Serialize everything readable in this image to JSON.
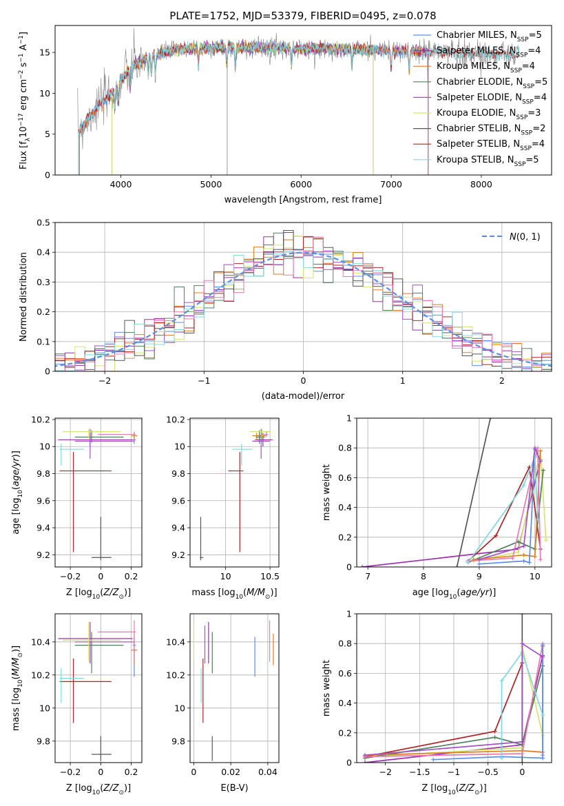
{
  "figure_title": "PLATE=1752, MJD=53379, FIBERID=0495, z=0.078",
  "colors": {
    "Chabrier MILES": "#5b8ee6",
    "Salpeter MILES": "#9b2fae",
    "Kroupa MILES": "#e07a1f",
    "Chabrier ELODIE": "#4f7f5a",
    "Salpeter ELODIE": "#a24fc3",
    "Kroupa ELODIE": "#d6e56a",
    "Chabrier STELIB": "#555555",
    "Salpeter STELIB": "#b22222",
    "Kroupa STELIB": "#7fd8e0",
    "data": "#7f7f7f",
    "gaussian": "#5b8ee6",
    "pink": "#e879b0"
  },
  "legend_entries": [
    {
      "label": "Chabrier MILES, N",
      "sub": "SSP",
      "tail": "=5",
      "color_key": "Chabrier MILES"
    },
    {
      "label": "Salpeter MILES, N",
      "sub": "SSP",
      "tail": "=4",
      "color_key": "Salpeter MILES"
    },
    {
      "label": "Kroupa MILES, N",
      "sub": "SSP",
      "tail": "=4",
      "color_key": "Kroupa MILES"
    },
    {
      "label": "Chabrier ELODIE, N",
      "sub": "SSP",
      "tail": "=5",
      "color_key": "Chabrier ELODIE"
    },
    {
      "label": "Salpeter ELODIE, N",
      "sub": "SSP",
      "tail": "=4",
      "color_key": "Salpeter ELODIE"
    },
    {
      "label": "Kroupa ELODIE, N",
      "sub": "SSP",
      "tail": "=3",
      "color_key": "Kroupa ELODIE"
    },
    {
      "label": "Chabrier STELIB, N",
      "sub": "SSP",
      "tail": "=2",
      "color_key": "Chabrier STELIB"
    },
    {
      "label": "Salpeter STELIB, N",
      "sub": "SSP",
      "tail": "=4",
      "color_key": "Salpeter STELIB"
    },
    {
      "label": "Kroupa STELIB, N",
      "sub": "SSP",
      "tail": "=5",
      "color_key": "Kroupa STELIB"
    }
  ],
  "chart_data": [
    {
      "id": "spectrum",
      "type": "line",
      "xlabel": "wavelength [Angstrom, rest frame]",
      "ylabel": "Flux [f_λ 10^-17 erg cm^-2 s^-1 A^-1]",
      "xlim": [
        3270,
        8780
      ],
      "ylim": [
        0,
        18.3
      ],
      "xticks": [
        4000,
        5000,
        6000,
        7000,
        8000
      ],
      "yticks": [
        0,
        5,
        10,
        15
      ],
      "grid": false,
      "legend_position": "right",
      "continuum": {
        "x": [
          3520,
          3700,
          3900,
          4000,
          4100,
          4300,
          4600,
          5000,
          5500,
          6000,
          6500,
          7000,
          7400,
          7800,
          8300
        ],
        "y": [
          5.2,
          7.8,
          10.0,
          11.5,
          13.0,
          14.5,
          15.3,
          15.6,
          15.6,
          15.5,
          15.4,
          15.2,
          15.1,
          14.9,
          14.7
        ]
      }
    },
    {
      "id": "residuals",
      "type": "histogram",
      "xlabel": "(data-model)/error",
      "ylabel": "Normed distribution",
      "xlim": [
        -2.5,
        2.5
      ],
      "ylim": [
        0,
        0.5
      ],
      "xticks": [
        -2,
        -1,
        0,
        1,
        2
      ],
      "yticks": [
        0,
        0.1,
        0.2,
        0.3,
        0.4,
        0.5
      ],
      "grid": true,
      "legend_position": "top-right",
      "legend": "N(0, 1)",
      "bin_width": 0.1
    },
    {
      "id": "age-vs-Z",
      "type": "errorbar",
      "xlabel": "Z [log10(Z/Z⊙)]",
      "ylabel": "age  [log10(age/yr)]",
      "xlim": [
        -0.3,
        0.27
      ],
      "ylim": [
        9.11,
        10.21
      ],
      "xticks": [
        -0.2,
        0.0,
        0.2
      ],
      "yticks": [
        9.2,
        9.4,
        9.6,
        9.8,
        10.0,
        10.2
      ],
      "grid": true
    },
    {
      "id": "age-vs-mass",
      "type": "errorbar",
      "xlabel": "mass [log10(M/M⊙)]",
      "ylabel": "",
      "xlim": [
        9.6,
        10.6
      ],
      "ylim": [
        9.11,
        10.21
      ],
      "xticks": [
        10.0,
        10.5
      ],
      "yticks": [
        9.2,
        9.4,
        9.6,
        9.8,
        10.0,
        10.2
      ],
      "grid": true
    },
    {
      "id": "weight-vs-age",
      "type": "line",
      "xlabel": "age  [log10(age/yr)]",
      "ylabel": "mass weight",
      "xlim": [
        6.8,
        10.3
      ],
      "ylim": [
        0,
        1.0
      ],
      "xticks": [
        7,
        8,
        9,
        10
      ],
      "yticks": [
        0.0,
        0.2,
        0.4,
        0.6,
        0.8,
        1.0
      ],
      "grid": true
    },
    {
      "id": "mass-vs-Z",
      "type": "errorbar",
      "xlabel": "Z [log10(Z/Z⊙)]",
      "ylabel": "mass [log10(M/M⊙)]",
      "xlim": [
        -0.3,
        0.27
      ],
      "ylim": [
        9.67,
        10.57
      ],
      "xticks": [
        -0.2,
        0.0,
        0.2
      ],
      "yticks": [
        9.8,
        10.0,
        10.2,
        10.4
      ],
      "grid": true
    },
    {
      "id": "mass-vs-ebv",
      "type": "errorbar",
      "xlabel": "E(B-V)",
      "ylabel": "",
      "xlim": [
        -0.002,
        0.046
      ],
      "ylim": [
        9.67,
        10.57
      ],
      "xticks": [
        0.0,
        0.02,
        0.04
      ],
      "yticks": [
        9.8,
        10.0,
        10.2,
        10.4
      ],
      "grid": true
    },
    {
      "id": "weight-vs-Z",
      "type": "line",
      "xlabel": "Z [log10(Z/Z⊙)]",
      "ylabel": "mass weight",
      "xlim": [
        -2.42,
        0.43
      ],
      "ylim": [
        0,
        1.0
      ],
      "xticks": [
        -2.0,
        -1.5,
        -1.0,
        -0.5,
        0.0
      ],
      "yticks": [
        0.0,
        0.2,
        0.4,
        0.6,
        0.8,
        1.0
      ],
      "grid": true
    }
  ],
  "errorbar_points": [
    {
      "model": "Chabrier MILES",
      "Z": 0.22,
      "Zlo": 0.21,
      "Zhi": 0.23,
      "age": 10.05,
      "agelo": 10.02,
      "agehi": 10.1,
      "mass": 10.38,
      "masslo": 10.35,
      "masshi": 10.44,
      "ebv": 0.033,
      "mlo": 10.19,
      "mhi": 10.43
    },
    {
      "model": "Salpeter MILES",
      "Z": -0.07,
      "Zlo": -0.28,
      "Zhi": 0.21,
      "age": 10.05,
      "agelo": 10.0,
      "agehi": 10.1,
      "mass": 10.42,
      "masslo": 10.33,
      "masshi": 10.53,
      "ebv": 0.008,
      "mlo": 10.27,
      "mhi": 10.52
    },
    {
      "model": "Kroupa MILES",
      "Z": 0.22,
      "Zlo": 0.2,
      "Zhi": 0.24,
      "age": 10.08,
      "agelo": 10.05,
      "agehi": 10.1,
      "mass": 10.35,
      "masslo": 10.3,
      "masshi": 10.46,
      "ebv": 0.043,
      "mlo": 10.26,
      "mhi": 10.45
    },
    {
      "model": "Chabrier ELODIE",
      "Z": -0.06,
      "Zlo": -0.17,
      "Zhi": 0.15,
      "age": 10.07,
      "agelo": 10.03,
      "agehi": 10.12,
      "mass": 10.38,
      "masslo": 10.34,
      "masshi": 10.44,
      "ebv": 0.01,
      "mlo": 10.21,
      "mhi": 10.46
    },
    {
      "model": "Salpeter ELODIE",
      "Z": -0.07,
      "Zlo": -0.17,
      "Zhi": 0.22,
      "age": 10.04,
      "agelo": 9.91,
      "agehi": 10.13,
      "mass": 10.4,
      "masslo": 10.3,
      "masshi": 10.5,
      "ebv": 0.006,
      "mlo": 10.27,
      "mhi": 10.5
    },
    {
      "model": "Kroupa ELODIE",
      "Z": -0.08,
      "Zlo": -0.25,
      "Zhi": 0.13,
      "age": 10.11,
      "agelo": 10.06,
      "agehi": 10.13,
      "mass": 10.41,
      "masslo": 10.27,
      "masshi": 10.51,
      "ebv": 0.0,
      "mlo": 10.28,
      "mhi": 10.52
    },
    {
      "model": "Chabrier STELIB",
      "Z": 0.0,
      "Zlo": -0.06,
      "Zhi": 0.07,
      "age": 9.18,
      "agelo": 9.16,
      "agehi": 9.48,
      "mass": 9.72,
      "masslo": 9.71,
      "masshi": 9.75,
      "ebv": 0.01,
      "mlo": 9.68,
      "mhi": 9.83
    },
    {
      "model": "Salpeter STELIB",
      "Z": -0.18,
      "Zlo": -0.27,
      "Zhi": 0.07,
      "age": 9.82,
      "agelo": 9.22,
      "agehi": 9.96,
      "mass": 10.16,
      "masslo": 10.03,
      "masshi": 10.2,
      "ebv": 0.005,
      "mlo": 9.91,
      "mhi": 10.3
    },
    {
      "model": "Kroupa STELIB",
      "Z": -0.26,
      "Zlo": -0.27,
      "Zhi": -0.11,
      "age": 9.98,
      "agelo": 9.86,
      "agehi": 10.02,
      "mass": 10.18,
      "masslo": 10.07,
      "masshi": 10.3,
      "ebv": 0.004,
      "mlo": 10.03,
      "mhi": 10.24
    },
    {
      "model": "pink",
      "Z": 0.22,
      "Zlo": -0.02,
      "Zhi": 0.23,
      "age": 10.09,
      "agelo": 10.07,
      "agehi": 10.11,
      "mass": 10.46,
      "masslo": 10.43,
      "masshi": 10.48,
      "ebv": 0.041,
      "mlo": 10.28,
      "mhi": 10.53
    }
  ],
  "weight_lines": [
    {
      "model": "Chabrier STELIB",
      "age": [
        8.6,
        9.2
      ],
      "Z": [
        0.0,
        0.0
      ],
      "w": [
        0.0,
        1.0
      ]
    },
    {
      "model": "Salpeter MILES",
      "age": [
        6.9,
        9.7,
        10.1
      ],
      "Z": [
        -2.3,
        0.0,
        0.3
      ],
      "w": [
        0.0,
        0.12,
        0.72
      ]
    },
    {
      "model": "Kroupa ELODIE",
      "age": [
        8.9,
        9.7,
        10.1,
        10.2
      ],
      "Z": [
        -2.3,
        0.0,
        0.0,
        0.3
      ],
      "w": [
        0.04,
        0.1,
        0.78,
        0.18
      ]
    },
    {
      "model": "Salpeter STELIB",
      "age": [
        8.8,
        9.3,
        9.9,
        10.1
      ],
      "Z": [
        -2.3,
        -0.4,
        0.0,
        0.0
      ],
      "w": [
        0.04,
        0.21,
        0.67,
        0.12
      ]
    },
    {
      "model": "Chabrier ELODIE",
      "age": [
        8.8,
        9.7,
        10.0,
        10.15
      ],
      "Z": [
        -2.3,
        -0.4,
        0.0,
        0.3
      ],
      "w": [
        0.03,
        0.17,
        0.12,
        0.65
      ]
    },
    {
      "model": "Kroupa MILES",
      "age": [
        8.9,
        9.8,
        10.0,
        10.1
      ],
      "Z": [
        -2.3,
        0.0,
        0.3,
        0.3
      ],
      "w": [
        0.05,
        0.08,
        0.07,
        0.78
      ]
    },
    {
      "model": "pink",
      "age": [
        8.8,
        9.6,
        10.05,
        10.1
      ],
      "Z": [
        -2.3,
        0.0,
        0.3,
        0.3
      ],
      "w": [
        0.04,
        0.06,
        0.8,
        0.05
      ]
    },
    {
      "model": "Chabrier MILES",
      "age": [
        9.0,
        9.8,
        9.9,
        10.0
      ],
      "Z": [
        -1.3,
        -0.3,
        0.3,
        0.3
      ],
      "w": [
        0.02,
        0.04,
        0.03,
        0.79
      ]
    },
    {
      "model": "Kroupa STELIB",
      "age": [
        8.8,
        9.8,
        10.0,
        10.05
      ],
      "Z": [
        -0.3,
        -0.3,
        0.0,
        0.3
      ],
      "w": [
        0.03,
        0.55,
        0.74,
        0.32
      ]
    },
    {
      "model": "Salpeter ELODIE",
      "age": [
        9.0,
        9.8,
        10.0,
        10.1
      ],
      "Z": [
        -2.3,
        0.0,
        0.0,
        0.3
      ],
      "w": [
        0.05,
        0.14,
        0.8,
        0.71
      ]
    }
  ]
}
